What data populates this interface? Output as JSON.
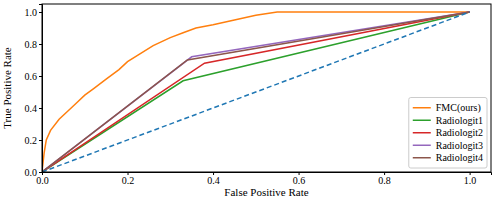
{
  "chart_data": {
    "type": "line",
    "xlabel": "False Positive Rate",
    "ylabel": "True Positive Rate",
    "xlim": [
      0,
      1.05
    ],
    "ylim": [
      0,
      1.05
    ],
    "xticks": [
      {
        "value": 0,
        "label": "0.0"
      },
      {
        "value": 0.2,
        "label": "0.2"
      },
      {
        "value": 0.4,
        "label": "0.4"
      },
      {
        "value": 0.6,
        "label": "0.6"
      },
      {
        "value": 0.8,
        "label": "0.8"
      },
      {
        "value": 1,
        "label": "1.0"
      }
    ],
    "yticks": [
      {
        "value": 0,
        "label": "0.0"
      },
      {
        "value": 0.2,
        "label": "0.2"
      },
      {
        "value": 0.4,
        "label": "0.4"
      },
      {
        "value": 0.6,
        "label": "0.6"
      },
      {
        "value": 0.8,
        "label": "0.8"
      },
      {
        "value": 1,
        "label": "1.0"
      }
    ],
    "grid": false,
    "legend": "lower right",
    "series": [
      {
        "name": "FMC(ours)",
        "color": "#ff7f0e",
        "line_style": "solid",
        "x": [
          0,
          0.005,
          0.01,
          0.02,
          0.04,
          0.06,
          0.08,
          0.1,
          0.12,
          0.15,
          0.18,
          0.2,
          0.23,
          0.26,
          0.3,
          0.33,
          0.36,
          0.4,
          0.45,
          0.5,
          0.55,
          0.6,
          0.8,
          1.0
        ],
        "values": [
          0,
          0.12,
          0.2,
          0.26,
          0.33,
          0.38,
          0.43,
          0.48,
          0.52,
          0.58,
          0.64,
          0.69,
          0.74,
          0.79,
          0.84,
          0.87,
          0.9,
          0.92,
          0.95,
          0.98,
          1.0,
          1.0,
          1.0,
          1.0
        ]
      },
      {
        "name": "Radiologit1",
        "color": "#2ca02c",
        "line_style": "solid",
        "x": [
          0,
          0.33,
          1.0
        ],
        "values": [
          0,
          0.57,
          1.0
        ]
      },
      {
        "name": "Radiologit2",
        "color": "#d62728",
        "line_style": "solid",
        "x": [
          0,
          0.38,
          1.0
        ],
        "values": [
          0,
          0.68,
          1.0
        ]
      },
      {
        "name": "Radiologit3",
        "color": "#9467bd",
        "line_style": "solid",
        "x": [
          0,
          0.35,
          1.0
        ],
        "values": [
          0,
          0.72,
          1.0
        ]
      },
      {
        "name": "Radiologit4",
        "color": "#8c564b",
        "line_style": "solid",
        "x": [
          0,
          0.34,
          1.0
        ],
        "values": [
          0,
          0.7,
          1.0
        ]
      },
      {
        "color": "#1f77b4",
        "line_style": "dashed",
        "x": [
          0,
          1.0
        ],
        "values": [
          0,
          1.0
        ]
      }
    ]
  }
}
